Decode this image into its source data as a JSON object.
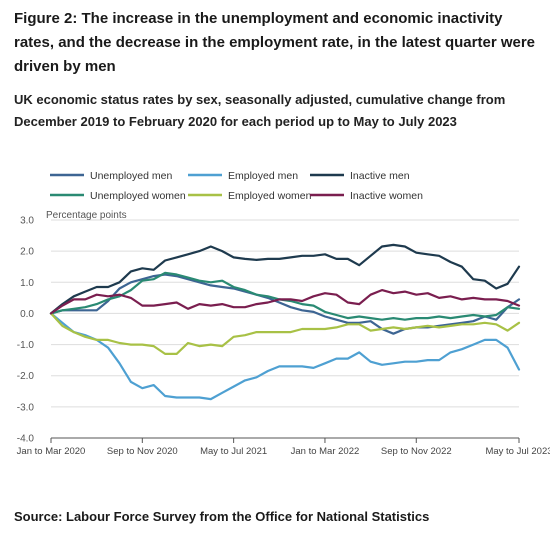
{
  "page": {
    "title": "Figure 2: The increase in the unemployment and economic inactivity rates, and the decrease in the employment rate, in the latest quarter were driven by men",
    "subtitle": "UK economic status rates by sex, seasonally adjusted, cumulative change from December 2019 to February 2020 for each period up to May to July 2023",
    "source": "Source: Labour Force Survey from the Office for National Statistics"
  },
  "chart_data": {
    "type": "line",
    "ylabel": "Percentage points",
    "ylim": [
      -4,
      3
    ],
    "yticks": [
      3.0,
      2.0,
      1.0,
      0.0,
      -1.0,
      -2.0,
      -3.0,
      -4.0
    ],
    "ytick_labels": [
      "3.0",
      "2.0",
      "1.0",
      "0.0",
      "-1.0",
      "-2.0",
      "-3.0",
      "-4.0"
    ],
    "x_count": 42,
    "xtick_labels": [
      {
        "index": 0,
        "label": "Jan to Mar 2020"
      },
      {
        "index": 8,
        "label": "Sep to Nov 2020"
      },
      {
        "index": 16,
        "label": "May to Jul 2021"
      },
      {
        "index": 24,
        "label": "Jan to Mar 2022"
      },
      {
        "index": 32,
        "label": "Sep to Nov 2022"
      },
      {
        "index": 41,
        "label": "May to Jul 2023"
      }
    ],
    "grid": true,
    "legend_position": "top",
    "series": [
      {
        "name": "Unemployed men",
        "color": "#3d6593",
        "values": [
          0.0,
          0.1,
          0.1,
          0.1,
          0.1,
          0.4,
          0.8,
          1.0,
          1.1,
          1.2,
          1.25,
          1.2,
          1.1,
          1.0,
          0.9,
          0.85,
          0.8,
          0.7,
          0.6,
          0.5,
          0.35,
          0.2,
          0.1,
          0.05,
          -0.1,
          -0.2,
          -0.3,
          -0.3,
          -0.25,
          -0.5,
          -0.65,
          -0.5,
          -0.45,
          -0.45,
          -0.4,
          -0.35,
          -0.3,
          -0.25,
          -0.1,
          -0.2,
          0.2,
          0.45
        ]
      },
      {
        "name": "Employed men",
        "color": "#4ea0d2",
        "values": [
          0.0,
          -0.3,
          -0.6,
          -0.7,
          -0.85,
          -1.1,
          -1.6,
          -2.2,
          -2.4,
          -2.3,
          -2.65,
          -2.7,
          -2.7,
          -2.7,
          -2.75,
          -2.55,
          -2.35,
          -2.15,
          -2.05,
          -1.85,
          -1.7,
          -1.7,
          -1.7,
          -1.75,
          -1.6,
          -1.45,
          -1.45,
          -1.25,
          -1.55,
          -1.65,
          -1.6,
          -1.55,
          -1.55,
          -1.5,
          -1.5,
          -1.25,
          -1.15,
          -1.0,
          -0.85,
          -0.85,
          -1.1,
          -1.8
        ]
      },
      {
        "name": "Inactive men",
        "color": "#1e3a4e",
        "values": [
          0.0,
          0.3,
          0.55,
          0.7,
          0.85,
          0.85,
          1.0,
          1.35,
          1.45,
          1.4,
          1.7,
          1.8,
          1.9,
          2.0,
          2.15,
          2.0,
          1.8,
          1.75,
          1.72,
          1.75,
          1.75,
          1.8,
          1.85,
          1.85,
          1.9,
          1.75,
          1.75,
          1.55,
          1.85,
          2.15,
          2.2,
          2.15,
          1.95,
          1.9,
          1.85,
          1.65,
          1.5,
          1.1,
          1.05,
          0.8,
          0.95,
          1.5
        ]
      },
      {
        "name": "Unemployed women",
        "color": "#2a8a73",
        "values": [
          0.0,
          0.1,
          0.15,
          0.2,
          0.3,
          0.45,
          0.55,
          0.75,
          1.05,
          1.1,
          1.3,
          1.25,
          1.15,
          1.05,
          1.0,
          1.05,
          0.85,
          0.75,
          0.6,
          0.55,
          0.45,
          0.4,
          0.3,
          0.25,
          0.05,
          -0.05,
          -0.15,
          -0.1,
          -0.15,
          -0.2,
          -0.15,
          -0.2,
          -0.15,
          -0.15,
          -0.1,
          -0.15,
          -0.1,
          -0.05,
          -0.1,
          -0.05,
          0.2,
          0.15
        ]
      },
      {
        "name": "Employed women",
        "color": "#a8c146",
        "values": [
          0.0,
          -0.4,
          -0.6,
          -0.75,
          -0.85,
          -0.85,
          -0.95,
          -1.0,
          -1.0,
          -1.05,
          -1.3,
          -1.3,
          -0.95,
          -1.05,
          -1.0,
          -1.05,
          -0.75,
          -0.7,
          -0.6,
          -0.6,
          -0.6,
          -0.6,
          -0.5,
          -0.5,
          -0.5,
          -0.45,
          -0.35,
          -0.35,
          -0.55,
          -0.5,
          -0.45,
          -0.5,
          -0.45,
          -0.4,
          -0.45,
          -0.4,
          -0.35,
          -0.35,
          -0.3,
          -0.35,
          -0.55,
          -0.3
        ]
      },
      {
        "name": "Inactive women",
        "color": "#7a1e4f",
        "values": [
          0.0,
          0.25,
          0.45,
          0.45,
          0.6,
          0.55,
          0.6,
          0.5,
          0.25,
          0.25,
          0.3,
          0.35,
          0.15,
          0.3,
          0.25,
          0.3,
          0.2,
          0.2,
          0.3,
          0.35,
          0.45,
          0.45,
          0.4,
          0.55,
          0.65,
          0.6,
          0.35,
          0.3,
          0.6,
          0.75,
          0.65,
          0.7,
          0.6,
          0.65,
          0.5,
          0.55,
          0.45,
          0.5,
          0.45,
          0.45,
          0.4,
          0.25
        ]
      }
    ]
  }
}
